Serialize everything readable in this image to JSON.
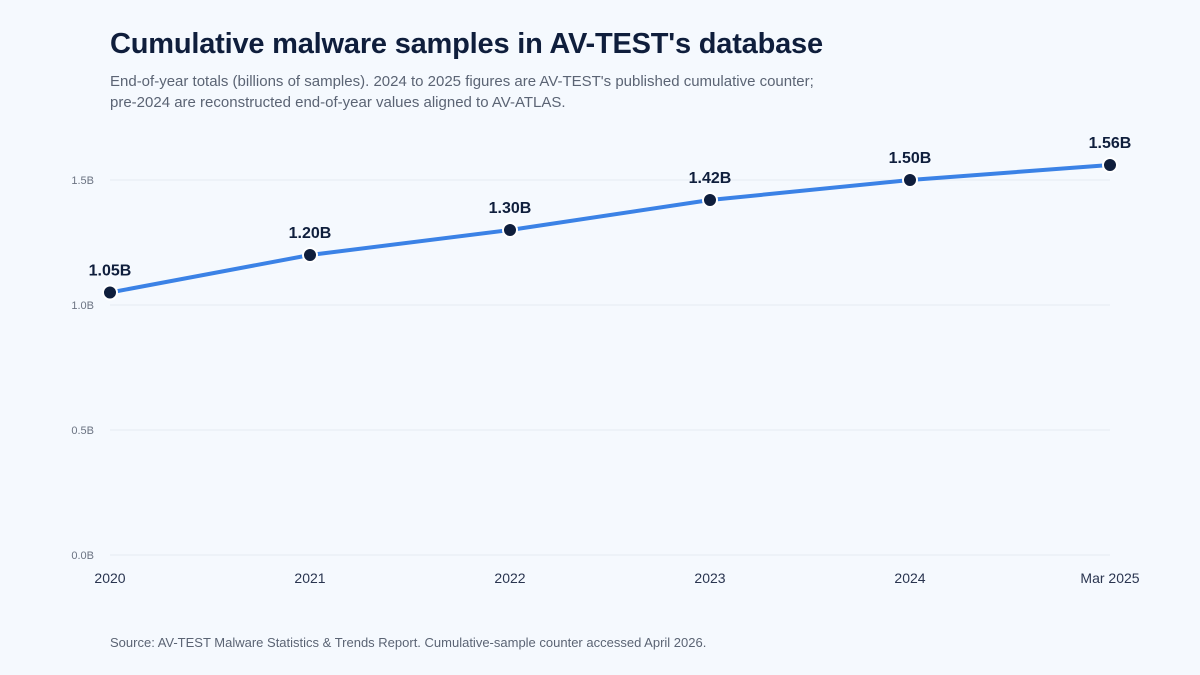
{
  "title": "Cumulative malware samples in AV-TEST's database",
  "subtitle": "End-of-year totals (billions of samples). 2024 to 2025 figures are AV-TEST's published cumulative counter; pre-2024 are reconstructed end-of-year values aligned to AV-ATLAS.",
  "source": "Source: AV-TEST Malware Statistics & Trends Report. Cumulative-sample counter accessed April 2026.",
  "colors": {
    "line": "#3b82e6",
    "marker": "#0f1e3c",
    "grid": "#e5eaf1",
    "background": "#f5f9fe"
  },
  "chart_data": {
    "type": "line",
    "title": "Cumulative malware samples in AV-TEST's database",
    "xlabel": "",
    "ylabel": "",
    "categories": [
      "2020",
      "2021",
      "2022",
      "2023",
      "2024",
      "Mar 2025"
    ],
    "series": [
      {
        "values": [
          1.05,
          1.2,
          1.3,
          1.42,
          1.5,
          1.56
        ],
        "labels": [
          "1.05B",
          "1.20B",
          "1.30B",
          "1.42B",
          "1.50B",
          "1.56B"
        ]
      }
    ],
    "ylim": [
      0,
      1.7
    ],
    "yticks": [
      0,
      0.5,
      1.0,
      1.5
    ],
    "ytick_labels": [
      "0.0B",
      "0.5B",
      "1.0B",
      "1.5B"
    ],
    "grid": true,
    "legend": "none"
  }
}
